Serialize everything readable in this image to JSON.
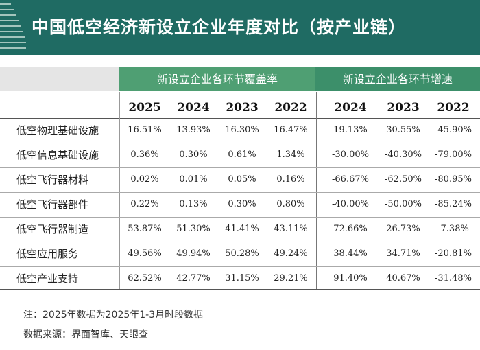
{
  "header": {
    "title": "中国低空经济新设立企业年度对比（按产业链）",
    "bg_color": "#1f6b63"
  },
  "groups": {
    "coverage": "新设立企业各环节覆盖率",
    "growth": "新设立企业各环节增速"
  },
  "coverage_years": [
    "2025",
    "2024",
    "2023",
    "2022"
  ],
  "growth_years": [
    "2024",
    "2023",
    "2022"
  ],
  "rows": [
    {
      "label": "低空物理基础设施",
      "coverage": [
        "16.51%",
        "13.93%",
        "16.30%",
        "16.47%"
      ],
      "growth": [
        "19.13%",
        "30.55%",
        "-45.90%"
      ]
    },
    {
      "label": "低空信息基础设施",
      "coverage": [
        "0.36%",
        "0.30%",
        "0.61%",
        "1.34%"
      ],
      "growth": [
        "-30.00%",
        "-40.30%",
        "-79.00%"
      ]
    },
    {
      "label": "低空飞行器材料",
      "coverage": [
        "0.02%",
        "0.01%",
        "0.05%",
        "0.16%"
      ],
      "growth": [
        "-66.67%",
        "-62.50%",
        "-80.95%"
      ]
    },
    {
      "label": "低空飞行器部件",
      "coverage": [
        "0.22%",
        "0.13%",
        "0.30%",
        "0.80%"
      ],
      "growth": [
        "-40.00%",
        "-50.00%",
        "-85.24%"
      ]
    },
    {
      "label": "低空飞行器制造",
      "coverage": [
        "53.87%",
        "51.30%",
        "41.41%",
        "43.11%"
      ],
      "growth": [
        "72.66%",
        "26.73%",
        "-7.38%"
      ]
    },
    {
      "label": "低空应用服务",
      "coverage": [
        "49.56%",
        "49.94%",
        "50.28%",
        "49.24%"
      ],
      "growth": [
        "38.44%",
        "34.71%",
        "-20.81%"
      ]
    },
    {
      "label": "低空产业支持",
      "coverage": [
        "62.52%",
        "42.77%",
        "31.15%",
        "29.21%"
      ],
      "growth": [
        "91.40%",
        "40.67%",
        "-31.48%"
      ]
    }
  ],
  "notes": {
    "note": "注：2025年数据为2025年1-3月时段数据",
    "source": "数据来源：界面智库、天眼查"
  }
}
